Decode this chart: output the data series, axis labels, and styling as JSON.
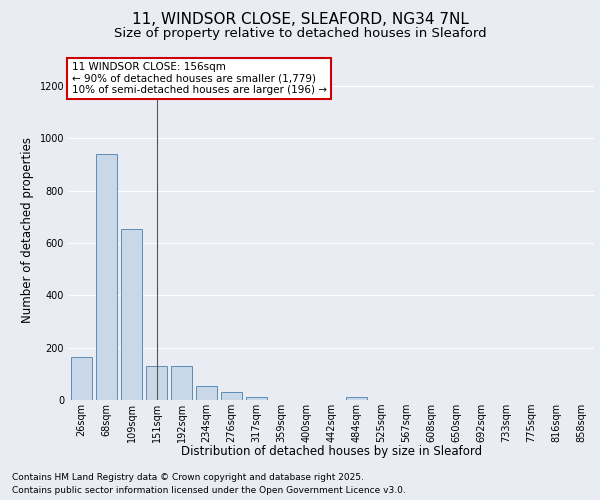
{
  "title_line1": "11, WINDSOR CLOSE, SLEAFORD, NG34 7NL",
  "title_line2": "Size of property relative to detached houses in Sleaford",
  "xlabel": "Distribution of detached houses by size in Sleaford",
  "ylabel": "Number of detached properties",
  "categories": [
    "26sqm",
    "68sqm",
    "109sqm",
    "151sqm",
    "192sqm",
    "234sqm",
    "276sqm",
    "317sqm",
    "359sqm",
    "400sqm",
    "442sqm",
    "484sqm",
    "525sqm",
    "567sqm",
    "608sqm",
    "650sqm",
    "692sqm",
    "733sqm",
    "775sqm",
    "816sqm",
    "858sqm"
  ],
  "values": [
    163,
    940,
    655,
    130,
    130,
    55,
    30,
    13,
    0,
    0,
    0,
    13,
    0,
    0,
    0,
    0,
    0,
    0,
    0,
    0,
    0
  ],
  "bar_color": "#c8d8e8",
  "bar_edge_color": "#5b8db8",
  "highlight_line_color": "#555555",
  "annotation_box_color": "#ffffff",
  "annotation_box_edge_color": "#cc0000",
  "annotation_text_line1": "11 WINDSOR CLOSE: 156sqm",
  "annotation_text_line2": "← 90% of detached houses are smaller (1,779)",
  "annotation_text_line3": "10% of semi-detached houses are larger (196) →",
  "annotation_fontsize": 7.5,
  "ylim": [
    0,
    1300
  ],
  "yticks": [
    0,
    200,
    400,
    600,
    800,
    1000,
    1200
  ],
  "footer_line1": "Contains HM Land Registry data © Crown copyright and database right 2025.",
  "footer_line2": "Contains public sector information licensed under the Open Government Licence v3.0.",
  "background_color": "#eaecf4",
  "plot_background_color": "#eaecf4",
  "grid_color": "#ffffff",
  "title_fontsize": 11,
  "subtitle_fontsize": 9.5,
  "axis_label_fontsize": 8.5,
  "tick_fontsize": 7,
  "footer_fontsize": 6.5
}
